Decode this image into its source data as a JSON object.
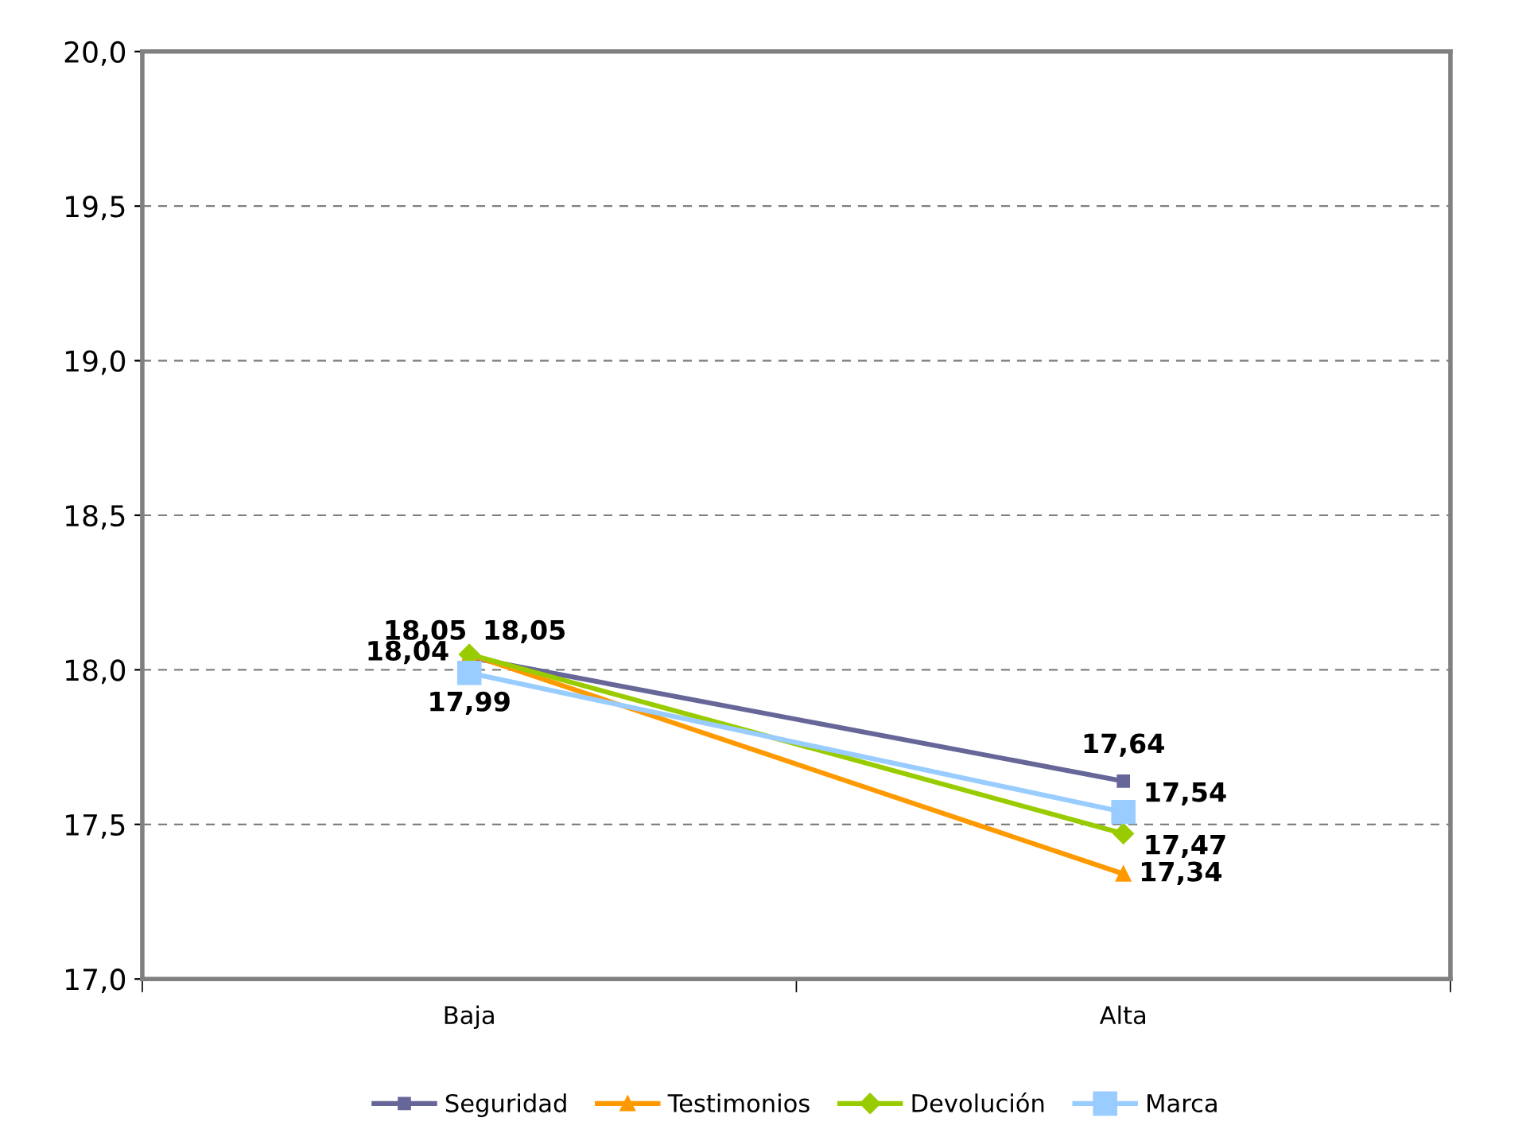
{
  "chart_data": {
    "type": "line",
    "categories": [
      "Baja",
      "Alta"
    ],
    "series": [
      {
        "name": "Seguridad",
        "color": "#666699",
        "values": [
          18.04,
          17.64
        ],
        "marker": "square",
        "value_labels": [
          "18,04",
          "17,64"
        ]
      },
      {
        "name": "Testimonios",
        "color": "#ff9900",
        "values": [
          18.05,
          17.34
        ],
        "marker": "triangle",
        "value_labels": [
          "18,05",
          "17,34"
        ]
      },
      {
        "name": "Devolución",
        "color": "#99cc00",
        "values": [
          18.05,
          17.47
        ],
        "marker": "diamond",
        "value_labels": [
          "18,05",
          "17,47"
        ]
      },
      {
        "name": "Marca",
        "color": "#99ccff",
        "values": [
          17.99,
          17.54
        ],
        "marker": "square",
        "value_labels": [
          "17,99",
          "17,54"
        ]
      }
    ],
    "ylim": [
      17.0,
      20.0
    ],
    "yticks": [
      {
        "value": 17.0,
        "label": "17,0"
      },
      {
        "value": 17.5,
        "label": "17,5"
      },
      {
        "value": 18.0,
        "label": "18,0"
      },
      {
        "value": 18.5,
        "label": "18,5"
      },
      {
        "value": 19.0,
        "label": "19,0"
      },
      {
        "value": 19.5,
        "label": "19,5"
      },
      {
        "value": 20.0,
        "label": "20,0"
      }
    ],
    "grid": "y",
    "legend": "bottom",
    "line_style": "solid"
  }
}
